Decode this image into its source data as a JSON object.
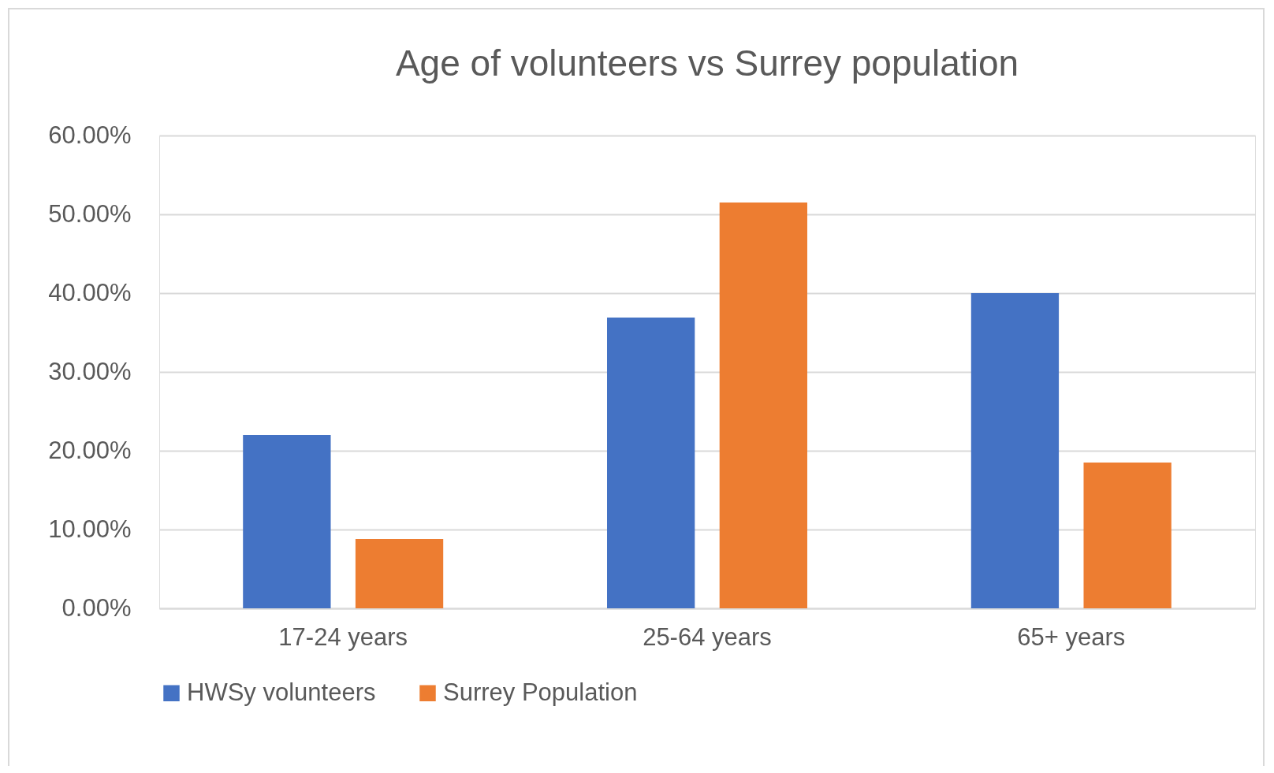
{
  "chart_data": {
    "type": "bar",
    "title": "Age of volunteers vs Surrey population",
    "categories": [
      "17-24 years",
      "25-64 years",
      "65+ years"
    ],
    "series": [
      {
        "name": "HWSy volunteers",
        "color": "#4472c4",
        "values": [
          22.0,
          36.9,
          40.0
        ]
      },
      {
        "name": "Surrey Population",
        "color": "#ed7d31",
        "values": [
          8.8,
          51.5,
          18.5
        ]
      }
    ],
    "ylim": [
      0,
      60
    ],
    "yticks": [
      {
        "value": 0,
        "label": "0.00%"
      },
      {
        "value": 10,
        "label": "10.00%"
      },
      {
        "value": 20,
        "label": "20.00%"
      },
      {
        "value": 30,
        "label": "30.00%"
      },
      {
        "value": 40,
        "label": "40.00%"
      },
      {
        "value": 50,
        "label": "50.00%"
      },
      {
        "value": 60,
        "label": "60.00%"
      }
    ],
    "grid": true,
    "legend": "bottom"
  }
}
